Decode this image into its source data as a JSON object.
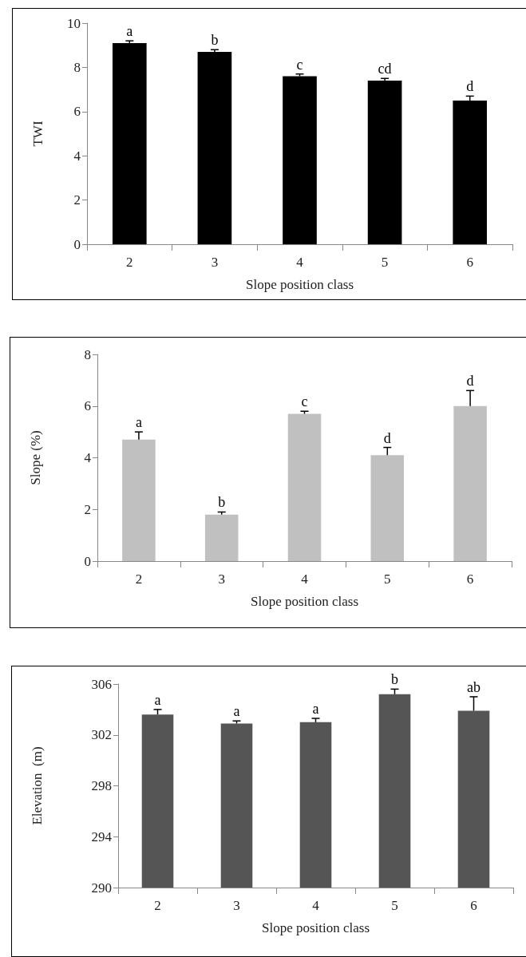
{
  "chart_data": [
    {
      "type": "bar",
      "xlabel": "Slope position class",
      "ylabel": "TWI",
      "categories": [
        "2",
        "3",
        "4",
        "5",
        "6"
      ],
      "color": "#000000",
      "values": [
        9.1,
        8.7,
        7.6,
        7.4,
        6.5
      ],
      "errors": [
        0.1,
        0.1,
        0.1,
        0.1,
        0.2
      ],
      "ylim": [
        0,
        10
      ],
      "yticks": [
        0,
        2,
        4,
        6,
        8,
        10
      ],
      "grid": false,
      "annotations": [
        {
          "text": "a",
          "x": "2",
          "y": 9.2
        },
        {
          "text": "b",
          "x": "3",
          "y": 8.8
        },
        {
          "text": "c",
          "x": "4",
          "y": 7.7
        },
        {
          "text": "cd",
          "x": "5",
          "y": 7.5
        },
        {
          "text": "d",
          "x": "6",
          "y": 6.7
        }
      ]
    },
    {
      "type": "bar",
      "xlabel": "Slope position class",
      "ylabel": "Slope (%)",
      "categories": [
        "2",
        "3",
        "4",
        "5",
        "6"
      ],
      "color": "#c0c0c0",
      "values": [
        4.7,
        1.8,
        5.7,
        4.1,
        6.0
      ],
      "errors": [
        0.3,
        0.1,
        0.1,
        0.3,
        0.6
      ],
      "ylim": [
        0,
        8
      ],
      "yticks": [
        0,
        2,
        4,
        6,
        8
      ],
      "grid": false,
      "annotations": [
        {
          "text": "a",
          "x": "2",
          "y": 5.0
        },
        {
          "text": "b",
          "x": "3",
          "y": 1.9
        },
        {
          "text": "c",
          "x": "4",
          "y": 5.8
        },
        {
          "text": "d",
          "x": "5",
          "y": 4.4
        },
        {
          "text": "d",
          "x": "6",
          "y": 6.6
        }
      ]
    },
    {
      "type": "bar",
      "xlabel": "Slope position class",
      "ylabel": "Elevation  (m)",
      "categories": [
        "2",
        "3",
        "4",
        "5",
        "6"
      ],
      "color": "#555555",
      "values": [
        303.6,
        302.9,
        303.0,
        305.2,
        303.9
      ],
      "errors": [
        0.4,
        0.2,
        0.3,
        0.4,
        1.1
      ],
      "ylim": [
        290,
        306
      ],
      "yticks": [
        290,
        294,
        298,
        302,
        306
      ],
      "grid": false,
      "annotations": [
        {
          "text": "a",
          "x": "2",
          "y": 304.0
        },
        {
          "text": "a",
          "x": "3",
          "y": 303.1
        },
        {
          "text": "a",
          "x": "4",
          "y": 303.3
        },
        {
          "text": "b",
          "x": "5",
          "y": 305.6
        },
        {
          "text": "ab",
          "x": "6",
          "y": 305.0
        }
      ]
    }
  ]
}
